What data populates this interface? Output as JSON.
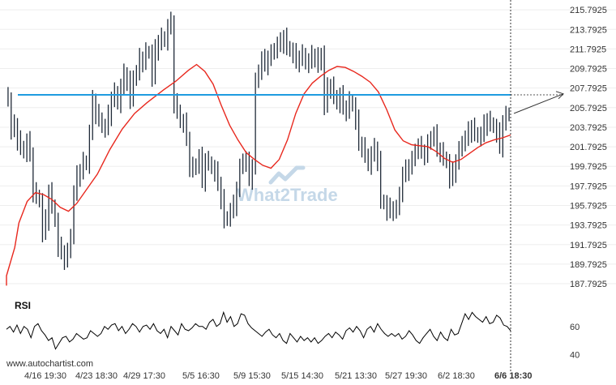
{
  "footer": {
    "site": "www.autochartist.com"
  },
  "watermark": {
    "brand": "What2Trade"
  },
  "colors": {
    "candle": "#1f2a38",
    "moving_average": "#e8281e",
    "level": "#1f9be0",
    "projection": "#333333",
    "rsi": "#000000"
  },
  "chart_data": [
    {
      "type": "candlestick",
      "title": "",
      "ylim": [
        186.8,
        216.3
      ],
      "y_ticks": [
        "215.7925",
        "213.7925",
        "211.7925",
        "209.7925",
        "207.7925",
        "205.7925",
        "203.7925",
        "201.7925",
        "199.7925",
        "197.7925",
        "195.7925",
        "193.7925",
        "191.7925",
        "189.7925",
        "187.7925"
      ],
      "x_ticks": [
        "4/16 19:30",
        "4/23 18:30",
        "4/29 17:30",
        "5/5 16:30",
        "5/9 15:30",
        "5/15 14:30",
        "5/21 13:30",
        "5/27 19:30",
        "6/2 18:30",
        "6/6 18:30"
      ],
      "last_x_tick_bold": true,
      "resistance_level": 207.1,
      "projection": {
        "from": 205.2,
        "to": 207.2
      },
      "close": [
        206.5,
        203.5,
        204.0,
        202.5,
        201.8,
        201.2,
        202.3,
        201.0,
        197.2,
        196.8,
        196.2,
        193.0,
        194.3,
        197.2,
        195.8,
        194.2,
        191.5,
        191.0,
        190.3,
        191.0,
        192.8,
        197.0,
        198.8,
        199.3,
        200.3,
        200.0,
        203.2,
        206.5,
        205.2,
        204.7,
        203.8,
        203.7,
        205.0,
        206.7,
        207.4,
        206.2,
        207.9,
        209.2,
        208.6,
        206.5,
        209.0,
        209.3,
        210.8,
        210.5,
        211.5,
        211.4,
        208.9,
        211.7,
        212.5,
        213.0,
        212.6,
        214.0,
        214.5,
        206.3,
        205.5,
        204.3,
        204.2,
        202.6,
        199.8,
        199.5,
        200.0,
        200.7,
        198.3,
        200.4,
        200.2,
        199.6,
        199.2,
        198.0,
        196.5,
        194.3,
        194.6,
        195.2,
        195.8,
        197.5,
        199.6,
        200.5,
        200.2,
        198.5,
        199.8,
        208.4,
        209.6,
        210.7,
        210.2,
        210.9,
        211.3,
        211.8,
        212.2,
        212.4,
        213.0,
        212.0,
        211.6,
        211.3,
        210.5,
        210.9,
        211.3,
        210.3,
        210.5,
        211.1,
        211.0,
        210.2,
        211.3,
        206.0,
        207.8,
        208.0,
        207.0,
        206.2,
        207.0,
        205.8,
        205.5,
        206.5,
        206.0,
        204.5,
        202.1,
        201.8,
        201.0,
        199.9,
        201.0,
        201.6,
        200.4,
        196.3,
        196.0,
        195.2,
        195.5,
        195.3,
        195.4,
        197.1,
        198.9,
        199.4,
        199.8,
        200.4,
        201.5,
        201.8,
        201.3,
        201.0,
        202.1,
        202.8,
        203.0,
        201.5,
        201.3,
        200.7,
        200.2,
        198.5,
        199.2,
        200.3,
        201.4,
        202.3,
        202.6,
        203.3,
        203.8,
        203.2,
        202.8,
        203.0,
        204.0,
        204.5,
        204.2,
        203.8,
        203.2,
        201.8,
        204.3,
        205.0,
        205.2
      ],
      "moving_average": {
        "start": 187.6,
        "points": [
          [
            0.0,
            188.6
          ],
          [
            0.02,
            191.5
          ],
          [
            0.03,
            194.0
          ],
          [
            0.05,
            196.2
          ],
          [
            0.07,
            197.1
          ],
          [
            0.09,
            196.9
          ],
          [
            0.11,
            196.4
          ],
          [
            0.13,
            195.6
          ],
          [
            0.15,
            195.2
          ],
          [
            0.17,
            196.0
          ],
          [
            0.19,
            197.2
          ],
          [
            0.22,
            199.0
          ],
          [
            0.25,
            201.5
          ],
          [
            0.28,
            203.6
          ],
          [
            0.31,
            205.2
          ],
          [
            0.34,
            206.3
          ],
          [
            0.38,
            207.6
          ],
          [
            0.41,
            208.5
          ],
          [
            0.44,
            209.6
          ],
          [
            0.46,
            210.2
          ],
          [
            0.48,
            209.5
          ],
          [
            0.5,
            208.2
          ],
          [
            0.52,
            206.0
          ],
          [
            0.54,
            204.0
          ],
          [
            0.56,
            202.5
          ],
          [
            0.58,
            201.2
          ],
          [
            0.6,
            200.5
          ],
          [
            0.62,
            199.9
          ],
          [
            0.64,
            199.6
          ],
          [
            0.66,
            200.5
          ],
          [
            0.68,
            202.5
          ],
          [
            0.7,
            205.2
          ],
          [
            0.72,
            207.2
          ],
          [
            0.74,
            208.3
          ],
          [
            0.76,
            209.0
          ],
          [
            0.78,
            209.6
          ],
          [
            0.8,
            210.0
          ],
          [
            0.82,
            209.9
          ],
          [
            0.84,
            209.5
          ],
          [
            0.86,
            209.0
          ],
          [
            0.88,
            208.4
          ],
          [
            0.9,
            207.4
          ],
          [
            0.92,
            205.6
          ],
          [
            0.94,
            203.5
          ],
          [
            0.96,
            202.4
          ],
          [
            0.98,
            202.0
          ],
          [
            1.0,
            201.9
          ],
          [
            1.02,
            201.8
          ],
          [
            1.04,
            201.3
          ],
          [
            1.06,
            200.6
          ],
          [
            1.08,
            200.2
          ],
          [
            1.1,
            200.5
          ],
          [
            1.12,
            201.1
          ],
          [
            1.14,
            201.7
          ],
          [
            1.16,
            202.2
          ],
          [
            1.18,
            202.5
          ],
          [
            1.2,
            202.7
          ],
          [
            1.22,
            203.0
          ]
        ]
      }
    },
    {
      "type": "line",
      "title": "RSI",
      "ylim": [
        34,
        80
      ],
      "y_ticks": [
        "60",
        "40"
      ],
      "values": [
        58,
        60,
        56,
        61,
        55,
        60,
        58,
        52,
        60,
        62,
        57,
        54,
        50,
        52,
        44,
        48,
        52,
        53,
        49,
        51,
        55,
        53,
        51,
        52,
        57,
        55,
        53,
        55,
        60,
        58,
        61,
        62,
        57,
        60,
        55,
        58,
        62,
        60,
        56,
        60,
        61,
        58,
        62,
        57,
        55,
        58,
        52,
        60,
        57,
        54,
        62,
        58,
        57,
        59,
        62,
        60,
        60,
        58,
        63,
        65,
        60,
        62,
        70,
        63,
        67,
        60,
        62,
        69,
        68,
        62,
        59,
        57,
        55,
        53,
        56,
        58,
        54,
        52,
        55,
        50,
        48,
        55,
        52,
        49,
        53,
        50,
        52,
        49,
        52,
        48,
        50,
        53,
        55,
        52,
        56,
        54,
        51,
        57,
        59,
        56,
        60,
        57,
        52,
        58,
        60,
        56,
        62,
        58,
        55,
        53,
        55,
        53,
        55,
        51,
        53,
        57,
        54,
        50,
        48,
        52,
        55,
        58,
        53,
        50,
        56,
        52,
        50,
        58,
        54,
        55,
        62,
        69,
        65,
        70,
        67,
        65,
        63,
        67,
        62,
        63,
        68,
        66,
        61,
        60,
        57
      ]
    }
  ]
}
